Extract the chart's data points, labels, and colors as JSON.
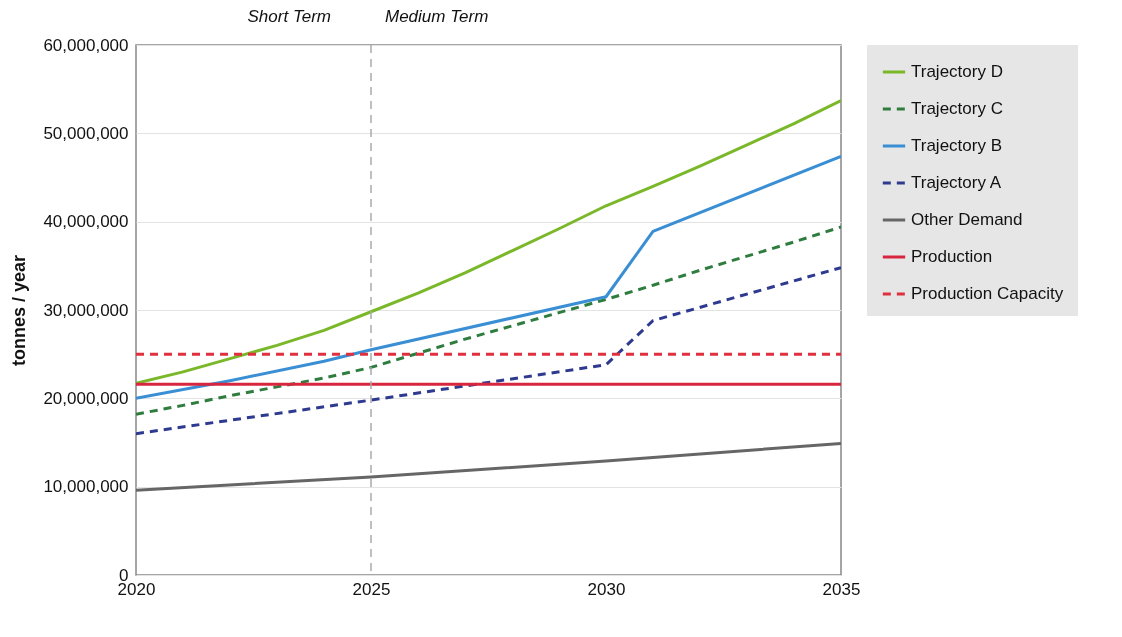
{
  "chart_data": {
    "type": "line",
    "ylabel": "tonnes / year",
    "x": [
      2020,
      2021,
      2022,
      2023,
      2024,
      2025,
      2026,
      2027,
      2028,
      2029,
      2030,
      2031,
      2032,
      2033,
      2034,
      2035
    ],
    "series": [
      {
        "name": "Trajectory D",
        "color": "#7ab829",
        "line_style": "solid",
        "values": [
          21700000.0,
          23000000.0,
          24500000.0,
          26000000.0,
          27700000.0,
          29800000.0,
          31900000.0,
          34200000.0,
          36700000.0,
          39200000.0,
          41800000.0,
          44000000.0,
          46300000.0,
          48700000.0,
          51100000.0,
          53700000.0
        ]
      },
      {
        "name": "Trajectory C",
        "color": "#2e7d3e",
        "line_style": "dashed",
        "values": [
          18200000.0,
          19200000.0,
          20300000.0,
          21300000.0,
          22300000.0,
          23500000.0,
          25100000.0,
          26700000.0,
          28200000.0,
          29700000.0,
          31200000.0,
          32800000.0,
          34500000.0,
          36100000.0,
          37700000.0,
          39400000.0
        ]
      },
      {
        "name": "Trajectory B",
        "color": "#3a8fd4",
        "line_style": "solid",
        "x": [
          2020,
          2022,
          2024,
          2025,
          2030,
          2031,
          2035
        ],
        "values": [
          20000000.0,
          22000000.0,
          24200000.0,
          25500000.0,
          31500000.0,
          38900000.0,
          47400000.0
        ]
      },
      {
        "name": "Trajectory A",
        "color": "#2e3a8f",
        "line_style": "dashed",
        "x": [
          2020,
          2025,
          2030,
          2031,
          2035
        ],
        "values": [
          16000000.0,
          19800000.0,
          23800000.0,
          28800000.0,
          34800000.0
        ]
      },
      {
        "name": "Other Demand",
        "color": "#666666",
        "line_style": "solid",
        "x": [
          2020,
          2025,
          2030,
          2035
        ],
        "values": [
          9600000.0,
          11100000.0,
          12900000.0,
          14900000.0
        ]
      },
      {
        "name": "Production",
        "color": "#d7263d",
        "line_style": "solid",
        "x": [
          2020,
          2035
        ],
        "values": [
          21600000.0,
          21600000.0
        ]
      },
      {
        "name": "Production Capacity",
        "color": "#e0303f",
        "line_style": "dashed",
        "x": [
          2020,
          2035
        ],
        "values": [
          25000000.0,
          25000000.0
        ]
      }
    ],
    "xlim": [
      2020,
      2035
    ],
    "xticks": [
      2020,
      2025,
      2030,
      2035
    ],
    "ylim": [
      0,
      60000000
    ],
    "yticks": [
      0,
      {
        "value": 10000000,
        "label": "10,000,000"
      },
      {
        "value": 20000000,
        "label": "20,000,000"
      },
      {
        "value": 30000000,
        "label": "30,000,000"
      },
      {
        "value": 40000000,
        "label": "40,000,000"
      },
      {
        "value": 50000000,
        "label": "50,000,000"
      },
      {
        "value": 60000000,
        "label": "60,000,000"
      }
    ],
    "grid": "y",
    "legend": "right",
    "ref_lines": [
      {
        "axis": "x",
        "value": 2025,
        "color": "#aaaaaa",
        "line_style": "dashed"
      }
    ],
    "annotations": [
      "Short Term",
      "Medium Term"
    ]
  }
}
